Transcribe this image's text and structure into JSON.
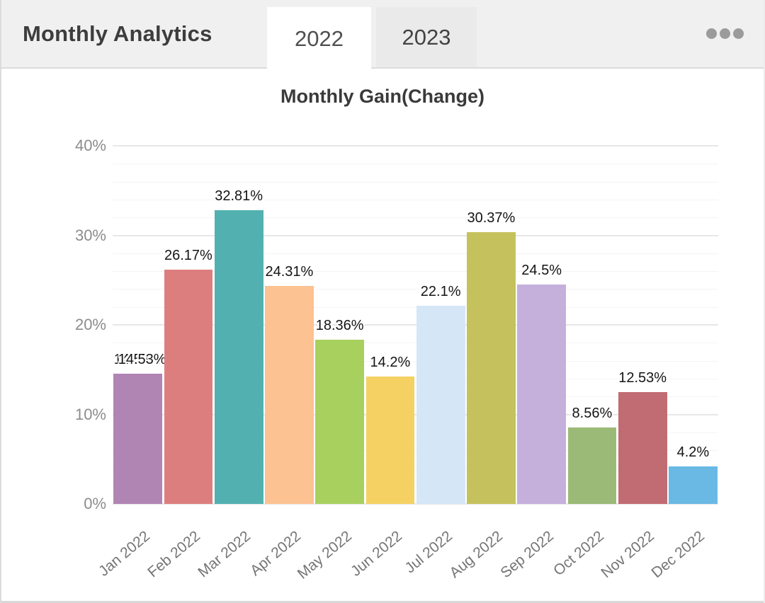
{
  "header": {
    "title": "Monthly Analytics",
    "tabs": [
      {
        "label": "2022",
        "active": true
      },
      {
        "label": "2023",
        "active": false
      }
    ],
    "menu_icon": "ellipsis-icon"
  },
  "theme": {
    "header_bg": "#f0f0f0",
    "active_tab_bg": "#ffffff",
    "inactive_tab_bg": "#eaeaea",
    "panel_bg": "#ffffff",
    "major_grid_color": "#e7e7e7",
    "minor_grid_color": "#f4f4f4",
    "axis_text_color": "#8c8c8c",
    "x_label_color": "#757575",
    "data_label_color": "#141414",
    "dots_color": "#9b9b9b"
  },
  "chart_data": {
    "type": "bar",
    "title": "Monthly Gain(Change)",
    "categories": [
      "Jan 2022",
      "Feb 2022",
      "Mar 2022",
      "Apr 2022",
      "May 2022",
      "Jun 2022",
      "Jul 2022",
      "Aug 2022",
      "Sep 2022",
      "Oct 2022",
      "Nov 2022",
      "Dec 2022"
    ],
    "values": [
      14.53,
      26.17,
      32.81,
      24.31,
      18.36,
      14.2,
      22.1,
      30.37,
      24.5,
      8.56,
      12.53,
      4.2
    ],
    "labels": [
      "14.53%",
      "26.17%",
      "32.81%",
      "24.31%",
      "18.36%",
      "14.2%",
      "22.1%",
      "30.37%",
      "24.5%",
      "8.56%",
      "12.53%",
      "4.2%"
    ],
    "bar_colors": [
      "#b185b3",
      "#dd7e7e",
      "#52b1b0",
      "#fcc292",
      "#a8d05f",
      "#f5d164",
      "#d5e6f7",
      "#c5c25e",
      "#c5b0dc",
      "#9cba77",
      "#c16b72",
      "#69b9e4"
    ],
    "xlabel": "",
    "ylabel": "",
    "ylim": [
      0,
      40
    ],
    "y_ticks": [
      {
        "label": "40%",
        "value": 40
      },
      {
        "label": "30%",
        "value": 30
      },
      {
        "label": "20%",
        "value": 20
      },
      {
        "label": "10%",
        "value": 10
      },
      {
        "label": "0%",
        "value": 0
      }
    ],
    "grid": {
      "major_step": 10,
      "minor_step": 2,
      "vertical": false
    },
    "legend": "none",
    "label_rotation_deg": -40,
    "doubled_label_indices": [
      0
    ]
  }
}
